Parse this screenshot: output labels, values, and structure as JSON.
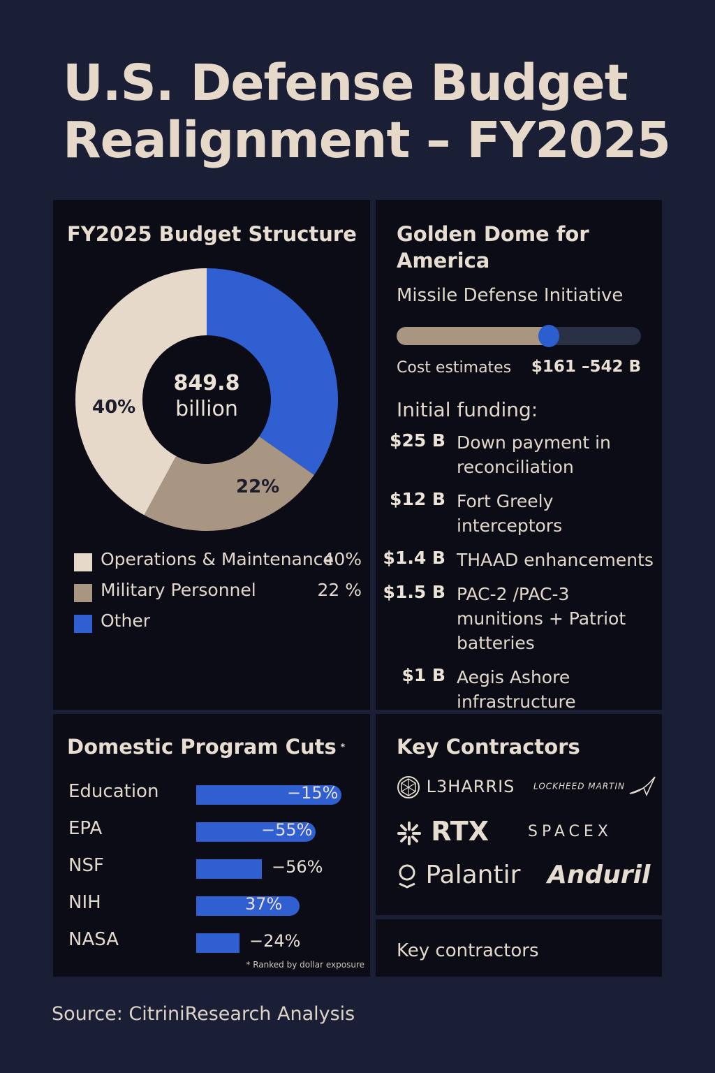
{
  "title": "U.S. Defense Budget Realignment – FY2025",
  "budget": {
    "heading": "FY2025 Budget Structure",
    "center_number": "849.8",
    "center_unit": "billion",
    "label_om": "40%",
    "label_mp": "22%"
  },
  "chart_data": [
    {
      "type": "pie",
      "title": "FY2025 Budget Structure",
      "total_label": "849.8 billion",
      "slices": [
        {
          "name": "Other",
          "value": 33,
          "color": "#2f5fd0"
        },
        {
          "name": "Military Personnel",
          "value": 22,
          "color": "#a89582"
        },
        {
          "name": "Operations & Maintenance",
          "value": 40,
          "color": "#e7d9ca"
        }
      ],
      "legend": [
        {
          "label": "Operations & Maintenance",
          "value": "40%",
          "color": "#e7d9ca"
        },
        {
          "label": "Military Personnel",
          "value": "22 %",
          "color": "#a89582"
        },
        {
          "label": "Other",
          "value": "",
          "color": "#2f5fd0"
        }
      ]
    },
    {
      "type": "bar",
      "title": "Domestic Program Cuts",
      "categories": [
        "Education",
        "EPA",
        "NSF",
        "NIH",
        "NASA"
      ],
      "values": [
        -15,
        -55,
        -56,
        37,
        -24
      ],
      "value_labels": [
        "−15%",
        "−55%",
        "−56%",
        "37%",
        "−24%"
      ],
      "bar_extent": [
        1.0,
        0.82,
        0.45,
        0.71,
        0.3
      ],
      "footnote": "* Ranked by dollar exposure"
    }
  ],
  "golden_dome": {
    "heading": "Golden Dome for America",
    "subtitle": "Missile Defense Initiative",
    "slider_level": 0.62,
    "cost_label": "Cost estimates",
    "cost_value": "$161 –542 B",
    "initial_funding_label": "Initial funding:",
    "items": [
      {
        "amount": "$25 B",
        "desc": "Down payment in reconciliation"
      },
      {
        "amount": "$12 B",
        "desc": "Fort Greely interceptors"
      },
      {
        "amount": "$1.4 B",
        "desc": "THAAD enhancements"
      },
      {
        "amount": "$1.5 B",
        "desc": "PAC-2 /PAC-3 munitions + Patriot batteries"
      },
      {
        "amount": "$1 B",
        "desc": "Aegis Ashore infrastructure"
      }
    ]
  },
  "cuts": {
    "heading": "Domestic Program Cuts",
    "asterisk": "*"
  },
  "contractors": {
    "heading": "Key Contractors",
    "logos": [
      "L3HARRIS",
      "LOCKHEED MARTIN",
      "RTX",
      "SPACEX",
      "Palantir",
      "Anduril"
    ]
  },
  "key_contractors_label": "Key contractors",
  "source": "Source: CitriniResearch Analysis"
}
